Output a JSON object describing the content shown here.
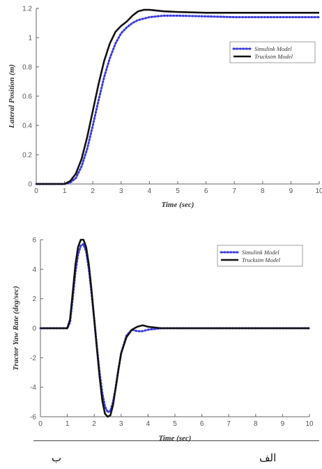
{
  "captions": {
    "left": "ب",
    "right": "الف"
  },
  "colors": {
    "simulink": "#3a3adc",
    "trucksim": "#111111"
  },
  "chart_data": [
    {
      "type": "line",
      "xlabel": "Time (sec)",
      "ylabel": "Lateral Position (m)",
      "xlim": [
        0,
        10
      ],
      "ylim": [
        0,
        1.2
      ],
      "xticks": [
        0,
        1,
        2,
        3,
        4,
        5,
        6,
        7,
        8,
        9,
        10
      ],
      "yticks": [
        0,
        0.2,
        0.4,
        0.6,
        0.8,
        1,
        1.2
      ],
      "ytick_labels": [
        "0",
        "0.2",
        "0.4",
        "0.6",
        "0.8",
        "1",
        "1.2"
      ],
      "legend": "top-right",
      "series": [
        {
          "name": "Simulink Model",
          "style": "dotted",
          "x": [
            0,
            1,
            1.2,
            1.4,
            1.6,
            1.8,
            2,
            2.2,
            2.4,
            2.6,
            2.8,
            3,
            3.2,
            3.4,
            3.6,
            3.8,
            4,
            4.5,
            5,
            6,
            7,
            8,
            9,
            10
          ],
          "y": [
            0,
            0,
            0.01,
            0.04,
            0.12,
            0.24,
            0.4,
            0.57,
            0.73,
            0.86,
            0.96,
            1.03,
            1.07,
            1.1,
            1.12,
            1.13,
            1.14,
            1.15,
            1.15,
            1.145,
            1.14,
            1.14,
            1.14,
            1.14
          ]
        },
        {
          "name": "Trucksim Model",
          "style": "solid",
          "x": [
            0,
            1,
            1.2,
            1.4,
            1.6,
            1.8,
            2,
            2.2,
            2.4,
            2.6,
            2.8,
            3,
            3.2,
            3.4,
            3.6,
            3.8,
            4,
            4.5,
            5,
            6,
            7,
            8,
            9,
            10
          ],
          "y": [
            0,
            0,
            0.02,
            0.07,
            0.17,
            0.32,
            0.5,
            0.68,
            0.84,
            0.96,
            1.04,
            1.08,
            1.11,
            1.15,
            1.18,
            1.19,
            1.19,
            1.18,
            1.175,
            1.17,
            1.17,
            1.17,
            1.17,
            1.17
          ]
        }
      ]
    },
    {
      "type": "line",
      "xlabel": "Time (sec)",
      "ylabel": "Tractor Yaw Rate (deg/sec)",
      "xlim": [
        0,
        10
      ],
      "ylim": [
        -6,
        6
      ],
      "xticks": [
        0,
        1,
        2,
        3,
        4,
        5,
        6,
        7,
        8,
        9,
        10
      ],
      "yticks": [
        -6,
        -4,
        -2,
        0,
        2,
        4,
        6
      ],
      "ytick_labels": [
        "-6",
        "-4",
        "-2",
        "0",
        "2",
        "4",
        "6"
      ],
      "legend": "top-right",
      "series": [
        {
          "name": "Simulink Model",
          "style": "dotted",
          "x": [
            0,
            1,
            1.1,
            1.2,
            1.3,
            1.4,
            1.5,
            1.6,
            1.7,
            1.8,
            1.9,
            2,
            2.1,
            2.2,
            2.3,
            2.4,
            2.5,
            2.6,
            2.7,
            2.8,
            2.9,
            3,
            3.2,
            3.4,
            3.6,
            3.8,
            4,
            4.5,
            5,
            6,
            7,
            8,
            9,
            10
          ],
          "y": [
            0,
            0,
            0.4,
            2.0,
            3.8,
            5.0,
            5.6,
            5.7,
            5.2,
            4.0,
            2.4,
            0.6,
            -1.3,
            -3.0,
            -4.4,
            -5.3,
            -5.7,
            -5.6,
            -5.0,
            -4.0,
            -2.8,
            -1.7,
            -0.5,
            -0.1,
            -0.2,
            -0.2,
            -0.1,
            0,
            0,
            0,
            0,
            0,
            0,
            0
          ]
        },
        {
          "name": "Trucksim Model",
          "style": "solid",
          "x": [
            0,
            1,
            1.1,
            1.2,
            1.3,
            1.4,
            1.5,
            1.6,
            1.7,
            1.8,
            1.9,
            2,
            2.1,
            2.2,
            2.3,
            2.4,
            2.5,
            2.6,
            2.7,
            2.8,
            2.9,
            3,
            3.2,
            3.4,
            3.6,
            3.8,
            4,
            4.5,
            5,
            6,
            7,
            8,
            9,
            10
          ],
          "y": [
            0,
            0,
            0.6,
            2.4,
            4.3,
            5.5,
            6.0,
            6.0,
            5.5,
            4.3,
            2.6,
            0.6,
            -1.4,
            -3.3,
            -4.9,
            -5.8,
            -6.0,
            -5.9,
            -5.2,
            -4.0,
            -2.8,
            -1.7,
            -0.6,
            -0.1,
            0.1,
            0.2,
            0.1,
            0,
            0,
            0,
            0,
            0,
            0,
            0
          ]
        }
      ]
    }
  ]
}
